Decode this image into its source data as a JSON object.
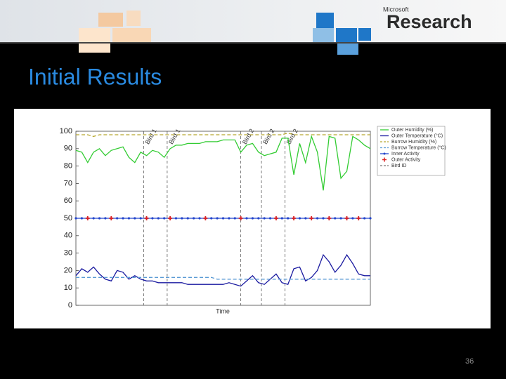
{
  "slide": {
    "title": "Initial Results",
    "logo_small": "Microsoft",
    "logo": "Research",
    "page_number": 36
  },
  "chart_data": {
    "type": "line",
    "x_label": "Time",
    "x": [
      0,
      2,
      4,
      6,
      8,
      10,
      12,
      14,
      16,
      18,
      20,
      22,
      24,
      26,
      28,
      30,
      32,
      34,
      36,
      38,
      40,
      42,
      44,
      46,
      48,
      50,
      52,
      54,
      56,
      58,
      60,
      62,
      64,
      66,
      68,
      70,
      72,
      74,
      76,
      78,
      80,
      82,
      84,
      86,
      88,
      90,
      92,
      94,
      96,
      98,
      100
    ],
    "xlim": [
      0,
      100
    ],
    "ylim": [
      0,
      100
    ],
    "yticks": [
      0,
      10,
      20,
      30,
      40,
      50,
      60,
      70,
      80,
      90,
      100
    ],
    "grid": false,
    "legend": "right",
    "series": [
      {
        "name": "Outer Humidity (%)",
        "color": "#33cc33",
        "style": "solid",
        "marker": "none",
        "values": [
          89,
          88,
          82,
          88,
          90,
          86,
          89,
          90,
          91,
          85,
          82,
          88,
          86,
          89,
          88,
          85,
          90,
          92,
          92,
          93,
          93,
          93,
          94,
          94,
          94,
          95,
          95,
          95,
          88,
          92,
          93,
          88,
          86,
          87,
          88,
          96,
          96,
          75,
          93,
          82,
          97,
          88,
          66,
          97,
          96,
          73,
          77,
          97,
          95,
          92,
          90
        ]
      },
      {
        "name": "Outer Temperature (°C)",
        "color": "#1a1aa0",
        "style": "solid",
        "marker": "none",
        "values": [
          17,
          21,
          19,
          22,
          18,
          15,
          14,
          20,
          19,
          15,
          17,
          15,
          14,
          14,
          13,
          13,
          13,
          13,
          13,
          12,
          12,
          12,
          12,
          12,
          12,
          12,
          13,
          12,
          11,
          14,
          17,
          13,
          12,
          15,
          18,
          13,
          12,
          21,
          22,
          14,
          16,
          20,
          29,
          25,
          19,
          23,
          29,
          24,
          18,
          17,
          17
        ]
      },
      {
        "name": "Burrow Humidity (%)",
        "color": "#b8a830",
        "style": "dashed",
        "marker": "none",
        "values": [
          98,
          98,
          98,
          97,
          98,
          98,
          98,
          98,
          98,
          98,
          98,
          98,
          98,
          98,
          98,
          98,
          98,
          98,
          98,
          98,
          98,
          98,
          98,
          98,
          98,
          98,
          98,
          98,
          98,
          98,
          98,
          98,
          98,
          98,
          98,
          98,
          99,
          98,
          98,
          98,
          98,
          98,
          98,
          98,
          98,
          98,
          98,
          98,
          98,
          98,
          98
        ]
      },
      {
        "name": "Burrow Temperature (°C)",
        "color": "#5b9bd5",
        "style": "dashed",
        "marker": "none",
        "values": [
          16,
          16,
          16,
          16,
          16,
          16,
          16,
          16,
          16,
          16,
          16,
          16,
          16,
          16,
          16,
          16,
          16,
          16,
          16,
          16,
          16,
          16,
          16,
          16,
          15,
          15,
          15,
          15,
          15,
          15,
          15,
          15,
          15,
          15,
          15,
          15,
          15,
          15,
          15,
          15,
          15,
          15,
          15,
          15,
          15,
          15,
          15,
          15,
          15,
          15,
          15
        ]
      },
      {
        "name": "Inner Activity",
        "color": "#2244cc",
        "style": "solid",
        "marker": "dot",
        "values": [
          50,
          50,
          50,
          50,
          50,
          50,
          50,
          50,
          50,
          50,
          50,
          50,
          50,
          50,
          50,
          50,
          50,
          50,
          50,
          50,
          50,
          50,
          50,
          50,
          50,
          50,
          50,
          50,
          50,
          50,
          50,
          50,
          50,
          50,
          50,
          50,
          50,
          50,
          50,
          50,
          50,
          50,
          50,
          50,
          50,
          50,
          50,
          50,
          50,
          50,
          50
        ]
      },
      {
        "name": "Outer Activity",
        "color": "#dd2222",
        "style": "none",
        "marker": "plus",
        "values": [
          null,
          null,
          50,
          null,
          null,
          null,
          50,
          null,
          null,
          null,
          null,
          null,
          50,
          null,
          null,
          null,
          50,
          null,
          null,
          null,
          null,
          null,
          50,
          null,
          null,
          null,
          null,
          null,
          50,
          null,
          null,
          null,
          null,
          null,
          50,
          null,
          null,
          50,
          null,
          null,
          50,
          null,
          null,
          50,
          null,
          null,
          50,
          null,
          50,
          null,
          null
        ]
      }
    ],
    "bird_id_label": "Bird ID",
    "bird_lines": [
      {
        "x": 23,
        "label": "Bird 1"
      },
      {
        "x": 31,
        "label": "Bird 1"
      },
      {
        "x": 56,
        "label": "Bird 2"
      },
      {
        "x": 63,
        "label": "Bird 2"
      },
      {
        "x": 71,
        "label": "Bird 2"
      }
    ]
  }
}
